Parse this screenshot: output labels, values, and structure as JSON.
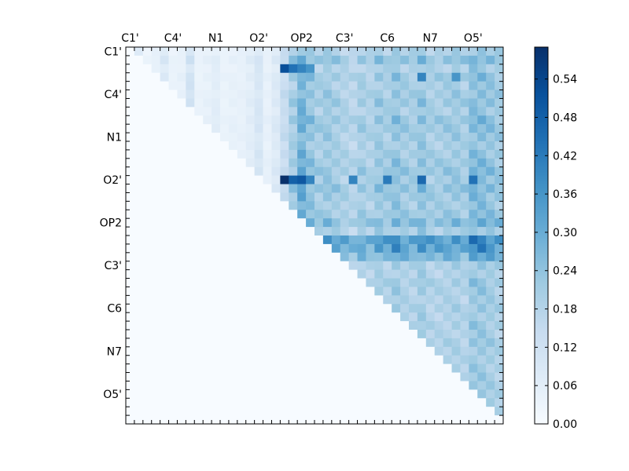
{
  "chart_data": {
    "type": "heatmap",
    "title": "",
    "xlabel": "",
    "ylabel": "",
    "x_tick_labels": [
      "C1'",
      "C4'",
      "N1",
      "O2'",
      "OP2",
      "C3'",
      "C6",
      "N7",
      "O5'"
    ],
    "y_tick_labels": [
      "C1'",
      "C4'",
      "N1",
      "O2'",
      "OP2",
      "C3'",
      "C6",
      "N7",
      "O5'"
    ],
    "matrix_size": 44,
    "structure": "upper-triangular correlation matrix; lower triangle and diagonal are zero",
    "colormap": "Blues",
    "colormap_stops": [
      "#f7fbff",
      "#deebf7",
      "#c6dbef",
      "#9ecae1",
      "#6baed6",
      "#4292c6",
      "#2171b5",
      "#08519c",
      "#08306b"
    ],
    "colorbar": {
      "min": 0.0,
      "max": 0.59,
      "ticks": [
        0.0,
        0.06,
        0.12,
        0.18,
        0.24,
        0.3,
        0.36,
        0.42,
        0.48,
        0.54
      ],
      "tick_labels": [
        "0.00",
        "0.06",
        "0.12",
        "0.18",
        "0.24",
        "0.30",
        "0.36",
        "0.42",
        "0.48",
        "0.54"
      ]
    },
    "value_profile": {
      "row_base": [
        0.05,
        0.1,
        0.05,
        0.08,
        0.06,
        0.07,
        0.08,
        0.06,
        0.09,
        0.08,
        0.07,
        0.06,
        0.07,
        0.08,
        0.09,
        0.07,
        0.1,
        0.08,
        0.07,
        0.08,
        0.12,
        0.06,
        0.22,
        0.2,
        0.14,
        0.05,
        0.04,
        0.06,
        0.05,
        0.04,
        0.05,
        0.04,
        0.05,
        0.04,
        0.05,
        0.04,
        0.04,
        0.04,
        0.04,
        0.04,
        0.04,
        0.04,
        0.04,
        0.0
      ],
      "col_base": [
        0.0,
        0.0,
        0.04,
        0.06,
        0.1,
        0.05,
        0.06,
        0.14,
        0.05,
        0.06,
        0.08,
        0.05,
        0.06,
        0.06,
        0.08,
        0.12,
        0.06,
        0.1,
        0.18,
        0.26,
        0.36,
        0.3,
        0.26,
        0.28,
        0.26,
        0.24,
        0.22,
        0.26,
        0.24,
        0.28,
        0.26,
        0.3,
        0.27,
        0.26,
        0.3,
        0.26,
        0.26,
        0.27,
        0.28,
        0.26,
        0.32,
        0.32,
        0.3,
        0.28
      ],
      "hot_rows": [
        {
          "row": 2,
          "cols": [
            18,
            19,
            20,
            21
          ],
          "values": [
            0.52,
            0.44,
            0.4,
            0.36
          ]
        },
        {
          "row": 15,
          "cols": [
            18,
            19,
            20,
            21
          ],
          "values": [
            0.59,
            0.48,
            0.5,
            0.4
          ]
        },
        {
          "row": 15,
          "cols": [
            26,
            30,
            34,
            40
          ],
          "values": [
            0.4,
            0.42,
            0.46,
            0.44
          ]
        },
        {
          "row": 3,
          "cols": [
            34,
            38
          ],
          "values": [
            0.4,
            0.36
          ]
        }
      ]
    }
  }
}
